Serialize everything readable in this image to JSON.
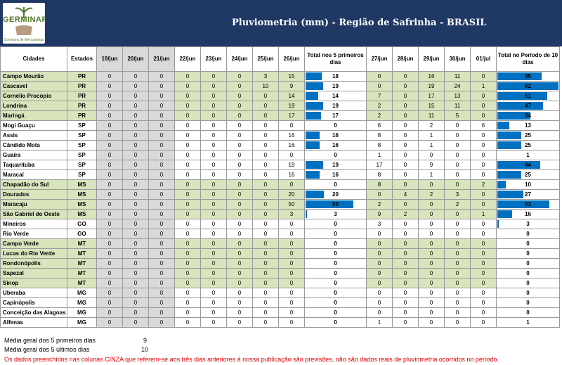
{
  "header": {
    "logo_name": "GERMINAR",
    "logo_tagline": "Corretora de Mercadorias",
    "title": "Pluviometria (mm) - Região de Safrinha - BRASIL"
  },
  "table": {
    "col_cities": "Cidades",
    "col_states": "Estados",
    "days_first": [
      "19/jun",
      "20/jun",
      "21/jun",
      "22/jun",
      "23/jun",
      "24/jun",
      "25/jun",
      "26/jun"
    ],
    "total_first_label": "Total nos 5 primeiros dias",
    "days_last": [
      "27/jun",
      "28/jun",
      "29/jun",
      "30/jun",
      "01/jul"
    ],
    "total_period_label": "Total no Período de 10 dias",
    "gray_columns": [
      0,
      1,
      2
    ],
    "rows": [
      {
        "city": "Campo Mourão",
        "state": "PR",
        "green": true,
        "first": [
          0,
          0,
          0,
          0,
          0,
          0,
          3,
          15
        ],
        "total5": 18,
        "last": [
          0,
          0,
          16,
          11,
          0
        ],
        "total10": 45
      },
      {
        "city": "Cascavel",
        "state": "PR",
        "green": true,
        "first": [
          0,
          0,
          0,
          0,
          0,
          0,
          10,
          9
        ],
        "total5": 19,
        "last": [
          0,
          0,
          19,
          24,
          1
        ],
        "total10": 62
      },
      {
        "city": "Cornélio Procópio",
        "state": "PR",
        "green": true,
        "first": [
          0,
          0,
          0,
          0,
          0,
          0,
          0,
          14
        ],
        "total5": 14,
        "last": [
          7,
          0,
          17,
          13,
          0
        ],
        "total10": 51
      },
      {
        "city": "Londrina",
        "state": "PR",
        "green": true,
        "first": [
          0,
          0,
          0,
          0,
          0,
          0,
          0,
          19
        ],
        "total5": 19,
        "last": [
          2,
          0,
          15,
          11,
          0
        ],
        "total10": 47
      },
      {
        "city": "Maringá",
        "state": "PR",
        "green": true,
        "first": [
          0,
          0,
          0,
          0,
          0,
          0,
          0,
          17
        ],
        "total5": 17,
        "last": [
          2,
          0,
          11,
          5,
          0
        ],
        "total10": 34
      },
      {
        "city": "Mogi Guaçu",
        "state": "SP",
        "green": false,
        "first": [
          0,
          0,
          0,
          0,
          0,
          0,
          0,
          0
        ],
        "total5": 0,
        "last": [
          6,
          0,
          2,
          0,
          6
        ],
        "total10": 13
      },
      {
        "city": "Assis",
        "state": "SP",
        "green": false,
        "first": [
          0,
          0,
          0,
          0,
          0,
          0,
          0,
          16
        ],
        "total5": 16,
        "last": [
          8,
          0,
          1,
          0,
          0
        ],
        "total10": 25
      },
      {
        "city": "Cândido Mota",
        "state": "SP",
        "green": false,
        "first": [
          0,
          0,
          0,
          0,
          0,
          0,
          0,
          16
        ],
        "total5": 16,
        "last": [
          8,
          0,
          1,
          0,
          0
        ],
        "total10": 25
      },
      {
        "city": "Guaíra",
        "state": "SP",
        "green": false,
        "first": [
          0,
          0,
          0,
          0,
          0,
          0,
          0,
          0
        ],
        "total5": 0,
        "last": [
          1,
          0,
          0,
          0,
          0
        ],
        "total10": 1
      },
      {
        "city": "Taquarituba",
        "state": "SP",
        "green": false,
        "first": [
          0,
          0,
          0,
          0,
          0,
          0,
          0,
          19
        ],
        "total5": 19,
        "last": [
          17,
          0,
          9,
          0,
          0
        ],
        "total10": 44
      },
      {
        "city": "Maracaí",
        "state": "SP",
        "green": false,
        "first": [
          0,
          0,
          0,
          0,
          0,
          0,
          0,
          16
        ],
        "total5": 16,
        "last": [
          8,
          0,
          1,
          0,
          0
        ],
        "total10": 25
      },
      {
        "city": "Chapadão do Sul",
        "state": "MS",
        "green": true,
        "first": [
          0,
          0,
          0,
          0,
          0,
          0,
          0,
          0
        ],
        "total5": 0,
        "last": [
          8,
          0,
          0,
          0,
          2
        ],
        "total10": 10
      },
      {
        "city": "Dourados",
        "state": "MS",
        "green": true,
        "first": [
          0,
          0,
          0,
          0,
          0,
          0,
          0,
          20
        ],
        "total5": 20,
        "last": [
          0,
          4,
          2,
          3,
          0
        ],
        "total10": 27
      },
      {
        "city": "Maracaju",
        "state": "MS",
        "green": true,
        "first": [
          0,
          0,
          0,
          0,
          0,
          0,
          0,
          50
        ],
        "total5": 50,
        "last": [
          2,
          0,
          0,
          2,
          0
        ],
        "total10": 53
      },
      {
        "city": "São Gabriel do Oeste",
        "state": "MS",
        "green": true,
        "first": [
          0,
          0,
          0,
          0,
          0,
          0,
          0,
          3
        ],
        "total5": 3,
        "last": [
          9,
          2,
          0,
          0,
          1
        ],
        "total10": 16
      },
      {
        "city": "Mineiros",
        "state": "GO",
        "green": false,
        "first": [
          0,
          0,
          0,
          0,
          0,
          0,
          0,
          0
        ],
        "total5": 0,
        "last": [
          3,
          0,
          0,
          0,
          0
        ],
        "total10": 3
      },
      {
        "city": "Rio Verde",
        "state": "GO",
        "green": false,
        "first": [
          0,
          0,
          0,
          0,
          0,
          0,
          0,
          0
        ],
        "total5": 0,
        "last": [
          0,
          0,
          0,
          0,
          0
        ],
        "total10": 0
      },
      {
        "city": "Campo Verde",
        "state": "MT",
        "green": true,
        "first": [
          0,
          0,
          0,
          0,
          0,
          0,
          0,
          0
        ],
        "total5": 0,
        "last": [
          0,
          0,
          0,
          0,
          0
        ],
        "total10": 0
      },
      {
        "city": "Lucas do Rio Verde",
        "state": "MT",
        "green": true,
        "first": [
          0,
          0,
          0,
          0,
          0,
          0,
          0,
          0
        ],
        "total5": 0,
        "last": [
          0,
          0,
          0,
          0,
          0
        ],
        "total10": 0
      },
      {
        "city": "Rondonópolis",
        "state": "MT",
        "green": true,
        "first": [
          0,
          0,
          0,
          0,
          0,
          0,
          0,
          0
        ],
        "total5": 0,
        "last": [
          0,
          0,
          0,
          0,
          0
        ],
        "total10": 0
      },
      {
        "city": "Sapezal",
        "state": "MT",
        "green": true,
        "first": [
          0,
          0,
          0,
          0,
          0,
          0,
          0,
          0
        ],
        "total5": 0,
        "last": [
          0,
          0,
          0,
          0,
          0
        ],
        "total10": 0
      },
      {
        "city": "Sinop",
        "state": "MT",
        "green": true,
        "first": [
          0,
          0,
          0,
          0,
          0,
          0,
          0,
          0
        ],
        "total5": 0,
        "last": [
          0,
          0,
          0,
          0,
          0
        ],
        "total10": 0
      },
      {
        "city": "Uberaba",
        "state": "MG",
        "green": false,
        "first": [
          0,
          0,
          0,
          0,
          0,
          0,
          0,
          0
        ],
        "total5": 0,
        "last": [
          0,
          0,
          0,
          0,
          0
        ],
        "total10": 0
      },
      {
        "city": "Capinópolis",
        "state": "MG",
        "green": false,
        "first": [
          0,
          0,
          0,
          0,
          0,
          0,
          0,
          0
        ],
        "total5": 0,
        "last": [
          0,
          0,
          0,
          0,
          0
        ],
        "total10": 0
      },
      {
        "city": "Conceição das Alagoas",
        "state": "MG",
        "green": false,
        "first": [
          0,
          0,
          0,
          0,
          0,
          0,
          0,
          0
        ],
        "total5": 0,
        "last": [
          0,
          0,
          0,
          0,
          0
        ],
        "total10": 0
      },
      {
        "city": "Alfenas",
        "state": "MG",
        "green": false,
        "first": [
          0,
          0,
          0,
          0,
          0,
          0,
          0,
          0
        ],
        "total5": 0,
        "last": [
          1,
          0,
          0,
          0,
          0
        ],
        "total10": 1
      }
    ]
  },
  "footer": {
    "avg_first_label": "Média geral dos 5 primeiros dias",
    "avg_first_value": "9",
    "avg_last_label": "Média geral dos 5 últimos dias",
    "avg_last_value": "10",
    "note": "Os dados preenchidos nas colunas CINZA que referem-se aos três dias anteriores à nossa publicação são previsões, não são dados reais de pluviometria ocorridos no período."
  },
  "colors": {
    "header_bg": "#1f3864",
    "green_row": "#d7e4bc",
    "gray_col": "#d9d9d9",
    "bar": "#0070c0",
    "note": "#e00000"
  }
}
